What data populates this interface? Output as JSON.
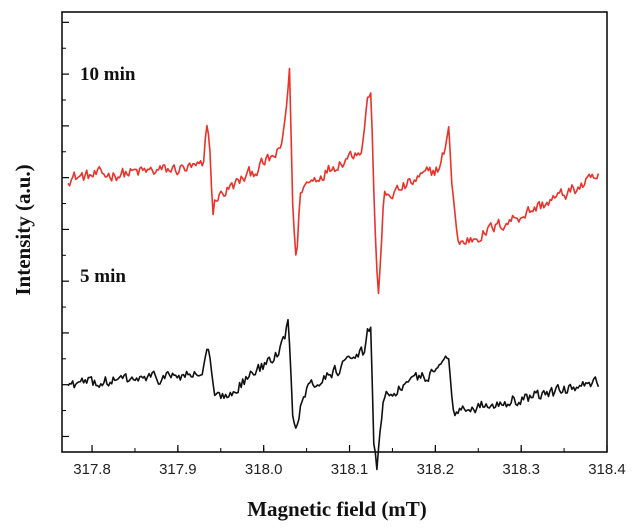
{
  "chart_data": {
    "type": "line",
    "title": "",
    "xlabel": "Magnetic field (mT)",
    "ylabel": "Intensity (a.u.)",
    "xlim": [
      317.765,
      318.4
    ],
    "ylim": [
      -5.3,
      3.2
    ],
    "x_ticks": [
      "317.8",
      "317.9",
      "318.0",
      "318.1",
      "318.2",
      "318.3",
      "318.4"
    ],
    "grid": false,
    "legend": "none",
    "series": [
      {
        "name": "10 min",
        "color": "#e8322a",
        "baseline": 0,
        "noise": 0.13,
        "x": [
          317.772,
          317.93,
          317.934,
          317.937,
          317.941,
          317.944,
          318.02,
          318.026,
          318.03,
          318.034,
          318.038,
          318.043,
          318.115,
          318.121,
          318.125,
          318.129,
          318.133,
          318.14,
          318.205,
          318.212,
          318.216,
          318.219,
          318.223,
          318.227,
          318.39
        ],
        "y": [
          0.0,
          0.2,
          1.1,
          0.6,
          -0.7,
          -0.4,
          0.5,
          1.3,
          2.1,
          -0.6,
          -1.7,
          -0.2,
          0.6,
          1.6,
          1.6,
          -0.6,
          -2.4,
          -0.4,
          0.2,
          0.6,
          0.9,
          0.0,
          -0.7,
          -1.3,
          0.0
        ]
      },
      {
        "name": "5 min",
        "color": "#111111",
        "baseline": -4.0,
        "noise": 0.12,
        "x": [
          317.772,
          317.928,
          317.934,
          317.938,
          317.942,
          317.948,
          318.018,
          318.024,
          318.029,
          318.034,
          318.038,
          318.046,
          318.116,
          318.121,
          318.125,
          318.128,
          318.132,
          318.14,
          318.205,
          318.212,
          318.216,
          318.22,
          318.224,
          318.39
        ],
        "y": [
          -4.0,
          -3.8,
          -3.3,
          -3.6,
          -4.2,
          -4.3,
          -3.4,
          -3.1,
          -2.7,
          -4.6,
          -4.8,
          -4.1,
          -3.4,
          -3.0,
          -2.8,
          -5.0,
          -5.6,
          -4.2,
          -3.7,
          -3.4,
          -3.5,
          -4.3,
          -4.5,
          -4.0
        ]
      }
    ]
  }
}
